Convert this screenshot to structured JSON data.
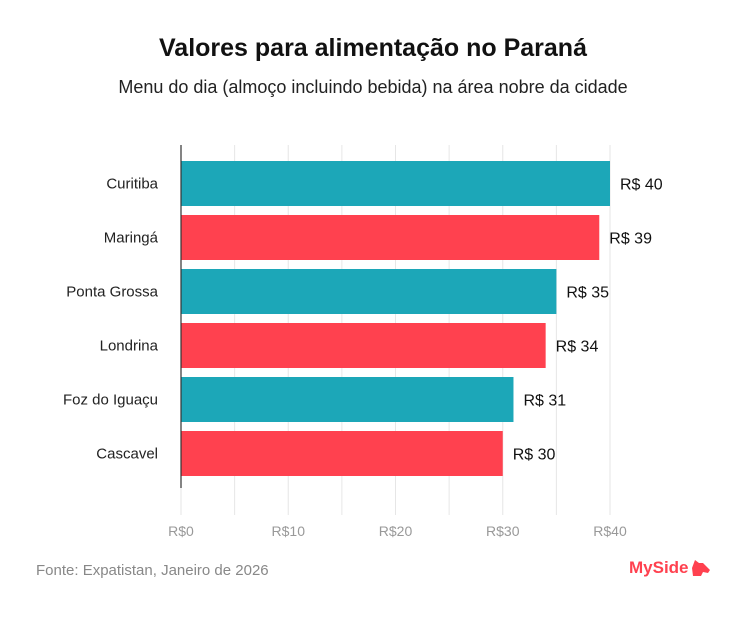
{
  "chart_data": {
    "type": "bar",
    "orientation": "horizontal",
    "title": "Valores para alimentação no Paraná",
    "subtitle": "Menu do dia (almoço incluindo bebida) na área nobre da cidade",
    "categories": [
      "Curitiba",
      "Maringá",
      "Ponta Grossa",
      "Londrina",
      "Foz do Iguaçu",
      "Cascavel"
    ],
    "values": [
      40,
      39,
      35,
      34,
      31,
      30
    ],
    "data_labels": [
      "R$ 40",
      "R$ 39",
      "R$ 35",
      "R$ 34",
      "R$ 31",
      "R$ 30"
    ],
    "bar_colors": [
      "#1CA7B8",
      "#FF414F",
      "#1CA7B8",
      "#FF414F",
      "#1CA7B8",
      "#FF414F"
    ],
    "xlim": [
      0,
      40
    ],
    "x_ticks": [
      0,
      10,
      20,
      30,
      40
    ],
    "x_tick_labels": [
      "R$0",
      "R$10",
      "R$20",
      "R$30",
      "R$40"
    ],
    "grid": true,
    "xlabel": "",
    "ylabel": ""
  },
  "footer": {
    "source": "Fonte: Expatistan, Janeiro de 2026",
    "logo": "MySide",
    "logo_color": "#FF414F"
  }
}
